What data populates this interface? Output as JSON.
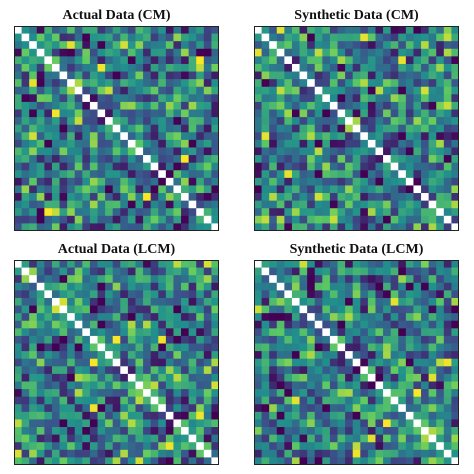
{
  "panels": [
    {
      "title": "Actual Data (CM)"
    },
    {
      "title": "Synthetic Data (CM)"
    },
    {
      "title": "Actual Data (LCM)"
    },
    {
      "title": "Synthetic Data (LCM)"
    }
  ],
  "colors": {
    "colormap": [
      "#440154",
      "#3b528b",
      "#21918c",
      "#5ec962",
      "#fde725"
    ],
    "diagonal": "#ffffff",
    "frame": "#222222"
  },
  "chart_data": [
    {
      "type": "heatmap",
      "title": "Actual Data (CM)",
      "size": 27,
      "diagonal": "white",
      "colormap": "viridis",
      "grid": false
    },
    {
      "type": "heatmap",
      "title": "Synthetic Data (CM)",
      "size": 27,
      "diagonal": "white",
      "colormap": "viridis",
      "grid": false
    },
    {
      "type": "heatmap",
      "title": "Actual Data (LCM)",
      "size": 27,
      "diagonal": "white",
      "colormap": "viridis",
      "grid": false
    },
    {
      "type": "heatmap",
      "title": "Synthetic Data (LCM)",
      "size": 27,
      "diagonal": "white",
      "colormap": "viridis",
      "grid": false
    }
  ]
}
